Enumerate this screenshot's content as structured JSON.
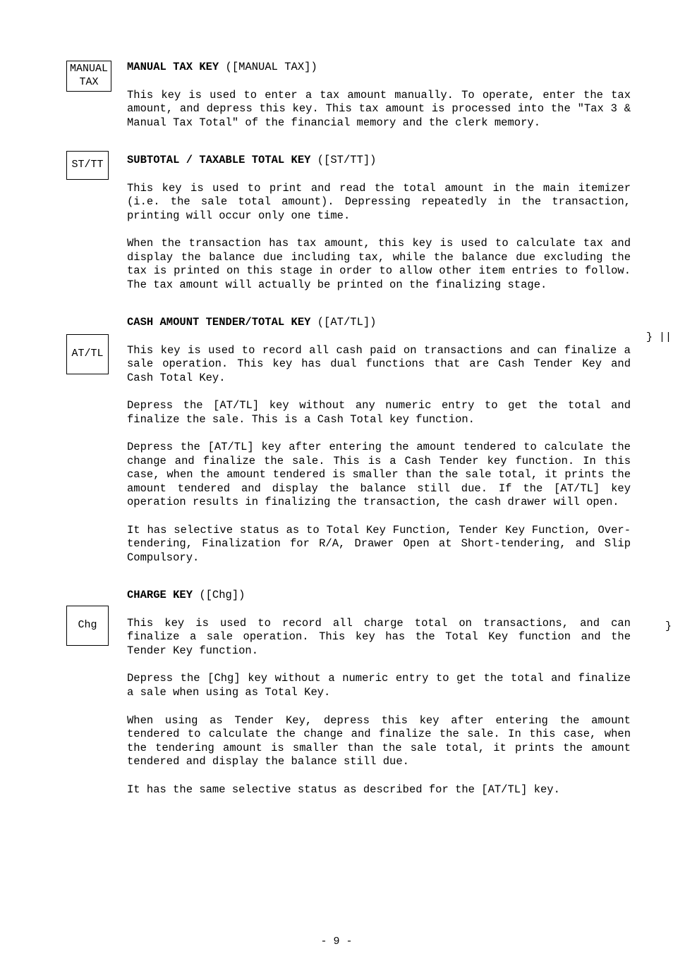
{
  "page_number": "- 9 -",
  "sections": [
    {
      "key_label": "MANUAL\nTAX",
      "heading_bold": "MANUAL TAX KEY",
      "heading_rest": " ([MANUAL TAX])",
      "paragraphs": [
        "This key is used to enter a tax amount manually.  To operate, enter the tax amount, and depress this key.  This tax amount is processed into the \"Tax 3 & Manual Tax Total\" of the financial memory and the clerk memory."
      ]
    },
    {
      "key_label": "ST/TT",
      "heading_bold": "SUBTOTAL / TAXABLE TOTAL KEY",
      "heading_rest": " ([ST/TT])",
      "paragraphs": [
        "This key is used to print and read the total amount in the main itemizer (i.e. the sale total amount).  Depressing repeatedly in the transaction, printing will occur only one time.",
        "When the transaction has tax amount, this key is used to calculate tax and display the balance due including tax, while the balance due excluding the tax is printed on this stage in order to allow other item entries to follow.  The tax amount will actually be printed on the finalizing stage."
      ]
    },
    {
      "key_label": "AT/TL",
      "heading_bold": "CASH AMOUNT TENDER/TOTAL KEY",
      "heading_rest": " ([AT/TL])",
      "paragraphs": [
        "This key is used to record all cash paid on transactions and can finalize a sale operation.  This key has dual functions that are Cash Tender Key and Cash Total Key.",
        "Depress the [AT/TL] key without any numeric entry to get the total and finalize the sale.  This is a Cash Total key function.",
        "Depress the [AT/TL] key after entering the amount tendered to calculate the change and finalize the sale.  This is a Cash Tender key function.  In this case, when the amount tendered is smaller than the sale total, it prints the amount tendered and display the balance still due.  If the [AT/TL] key operation results in finalizing the transaction, the cash drawer will open.",
        "It has selective status as to Total Key Function, Tender Key Function, Over-tendering, Finalization for R/A, Drawer Open at Short-tendering, and Slip Compulsory."
      ]
    },
    {
      "key_label": "Chg",
      "heading_bold": "CHARGE KEY",
      "heading_rest": " ([Chg])",
      "paragraphs": [
        "This key is used to record all charge total on transactions, and can finalize a sale operation.  This key has the Total Key function and the Tender Key function.",
        "Depress the [Chg] key without a numeric entry to get the total and finalize a sale when using as Total Key.",
        "When using as Tender Key, depress this key after entering the amount tendered to calculate the change and finalize the sale.  In this case, when the tendering amount is smaller than the sale total, it prints the amount tendered and display the balance still due.",
        "It has the same selective status as described for the [AT/TL] key."
      ]
    }
  ],
  "edge_marks": {
    "m1": "}  ||",
    "m2": "}"
  }
}
